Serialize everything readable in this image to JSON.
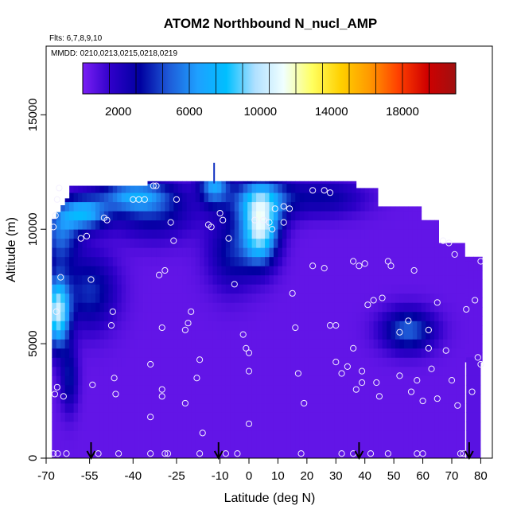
{
  "chart_data": {
    "type": "heatmap",
    "title": "ATOM2 Northbound N_nucl_AMP",
    "flights_note": "Flts: 6,7,8,9,10",
    "dates_note": "MMDD: 0210,0213,0215,0218,0219",
    "xlabel": "Latitude (deg N)",
    "ylabel": "Altitude (m)",
    "xlim": [
      -70,
      84
    ],
    "ylim": [
      0,
      18000
    ],
    "x_ticks": [
      -70,
      -55,
      -40,
      -25,
      -10,
      0,
      10,
      20,
      30,
      40,
      50,
      60,
      70,
      80
    ],
    "y_ticks": [
      0,
      5000,
      10000,
      15000
    ],
    "colorbar": {
      "range": [
        0,
        21000
      ],
      "ticks": [
        2000,
        6000,
        10000,
        14000,
        18000
      ],
      "colors": [
        "#7a1ff5",
        "#2d00c8",
        "#0000a0",
        "#1e5bd8",
        "#1ea0ff",
        "#00bfff",
        "#b0e0ff",
        "#f0ffff",
        "#ffff60",
        "#ffd000",
        "#ff9900",
        "#ff4000",
        "#d00000",
        "#a01010"
      ]
    },
    "background_value": 500,
    "sample_points": [
      [
        -67.5,
        10100
      ],
      [
        -66.8,
        10600
      ],
      [
        -66.2,
        11300
      ],
      [
        -65.5,
        11800
      ],
      [
        -65.0,
        7900
      ],
      [
        -66.5,
        6400
      ],
      [
        -67,
        2800
      ],
      [
        -66.2,
        3100
      ],
      [
        -64,
        2700
      ],
      [
        -67.5,
        200
      ],
      [
        -66,
        200
      ],
      [
        -63,
        200
      ],
      [
        -58,
        9600
      ],
      [
        -56,
        9700
      ],
      [
        -54.5,
        7800
      ],
      [
        -54,
        3200
      ],
      [
        -52,
        200
      ],
      [
        -50,
        10500
      ],
      [
        -49,
        10400
      ],
      [
        -47.5,
        5800
      ],
      [
        -47,
        6400
      ],
      [
        -46.5,
        3500
      ],
      [
        -46,
        2800
      ],
      [
        -45,
        200
      ],
      [
        -40,
        11300
      ],
      [
        -38,
        11300
      ],
      [
        -36,
        11300
      ],
      [
        -33,
        11900
      ],
      [
        -32,
        11900
      ],
      [
        -30,
        2700
      ],
      [
        -30,
        3000
      ],
      [
        -30,
        5700
      ],
      [
        -31,
        8000
      ],
      [
        -29,
        8200
      ],
      [
        -26,
        9500
      ],
      [
        -27,
        10300
      ],
      [
        -25,
        11300
      ],
      [
        -34,
        200
      ],
      [
        -34,
        1800
      ],
      [
        -34,
        4100
      ],
      [
        -29,
        200
      ],
      [
        -28,
        200
      ],
      [
        -22,
        2400
      ],
      [
        -22,
        5600
      ],
      [
        -21,
        5900
      ],
      [
        -20,
        6400
      ],
      [
        -18,
        3500
      ],
      [
        -17,
        4300
      ],
      [
        -17,
        200
      ],
      [
        -16,
        1100
      ],
      [
        -14,
        10200
      ],
      [
        -13,
        10100
      ],
      [
        -10,
        10700
      ],
      [
        -9,
        10400
      ],
      [
        -7,
        9600
      ],
      [
        -5,
        7600
      ],
      [
        -2,
        5400
      ],
      [
        -1,
        4800
      ],
      [
        0,
        4600
      ],
      [
        0,
        3800
      ],
      [
        0,
        1500
      ],
      [
        -4,
        200
      ],
      [
        -8,
        200
      ],
      [
        2,
        10400
      ],
      [
        5,
        10400
      ],
      [
        7,
        10300
      ],
      [
        8,
        10000
      ],
      [
        9,
        10900
      ],
      [
        12,
        11000
      ],
      [
        12,
        10300
      ],
      [
        14,
        10900
      ],
      [
        15,
        7200
      ],
      [
        16,
        5700
      ],
      [
        17,
        3700
      ],
      [
        18,
        200
      ],
      [
        19,
        2400
      ],
      [
        22,
        11700
      ],
      [
        26,
        11700
      ],
      [
        28,
        11600
      ],
      [
        22,
        8400
      ],
      [
        26,
        8300
      ],
      [
        28,
        5800
      ],
      [
        30,
        5800
      ],
      [
        30,
        4200
      ],
      [
        32,
        3700
      ],
      [
        34,
        4000
      ],
      [
        36,
        8600
      ],
      [
        38,
        8400
      ],
      [
        40,
        8500
      ],
      [
        36,
        4800
      ],
      [
        37,
        3000
      ],
      [
        39,
        3800
      ],
      [
        39,
        3300
      ],
      [
        41,
        6700
      ],
      [
        43,
        6900
      ],
      [
        44,
        3300
      ],
      [
        45,
        2700
      ],
      [
        46,
        7000
      ],
      [
        48,
        8600
      ],
      [
        49,
        8400
      ],
      [
        52,
        5500
      ],
      [
        55,
        6000
      ],
      [
        57,
        8200
      ],
      [
        52,
        3600
      ],
      [
        56,
        2900
      ],
      [
        58,
        3400
      ],
      [
        58,
        200
      ],
      [
        60,
        2500
      ],
      [
        62,
        5600
      ],
      [
        62,
        4800
      ],
      [
        63,
        3900
      ],
      [
        65,
        6800
      ],
      [
        65,
        2600
      ],
      [
        67,
        9500
      ],
      [
        69,
        9400
      ],
      [
        71,
        8900
      ],
      [
        68,
        4700
      ],
      [
        70,
        3400
      ],
      [
        72,
        2300
      ],
      [
        73,
        200
      ],
      [
        75,
        6500
      ],
      [
        77,
        2900
      ],
      [
        79,
        4400
      ],
      [
        80,
        4100
      ],
      [
        78,
        6900
      ],
      [
        80,
        8600
      ],
      [
        74,
        200
      ],
      [
        60,
        200
      ],
      [
        48,
        200
      ],
      [
        42,
        200
      ],
      [
        36,
        200
      ],
      [
        32,
        200
      ]
    ],
    "arrows_latitude": [
      -54.5,
      -10.5,
      38,
      76
    ]
  }
}
